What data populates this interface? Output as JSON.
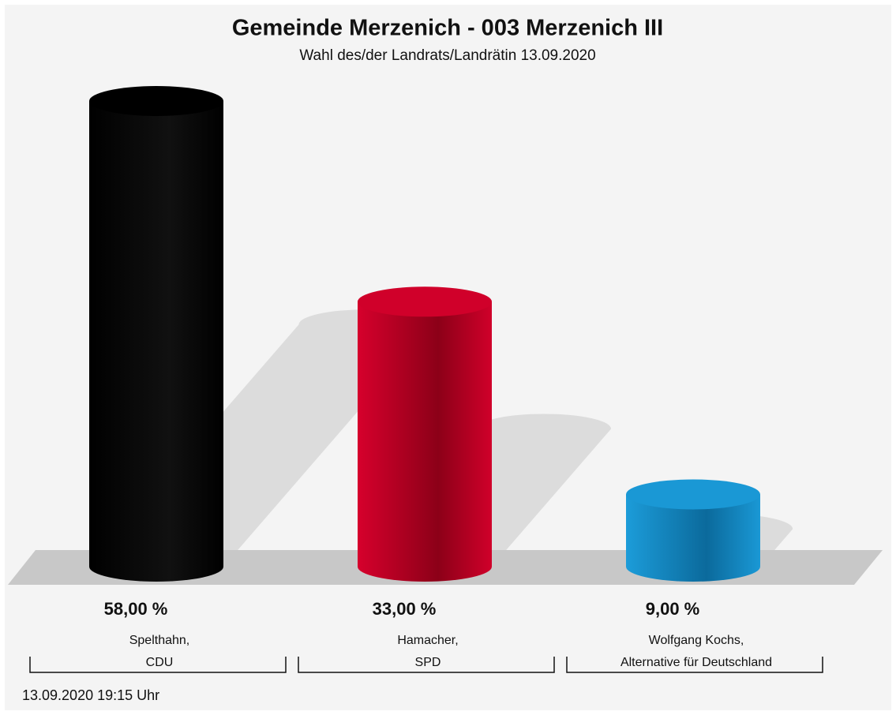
{
  "chart_data": {
    "type": "bar",
    "title": "Gemeinde Merzenich - 003 Merzenich III",
    "subtitle": "Wahl des/der Landrats/Landrätin 13.09.2020",
    "categories": [
      [
        "Spelthahn,",
        "CDU"
      ],
      [
        "Hamacher,",
        "SPD"
      ],
      [
        "Wolfgang Kochs,",
        "Alternative für Deutschland"
      ]
    ],
    "values": [
      58,
      33,
      9
    ],
    "value_labels": [
      "58,00 %",
      "33,00 %",
      "9,00 %"
    ],
    "colors": [
      "#000000",
      "#d0002a",
      "#1a98d5"
    ],
    "footnote": "13.09.2020 19:15 Uhr"
  }
}
